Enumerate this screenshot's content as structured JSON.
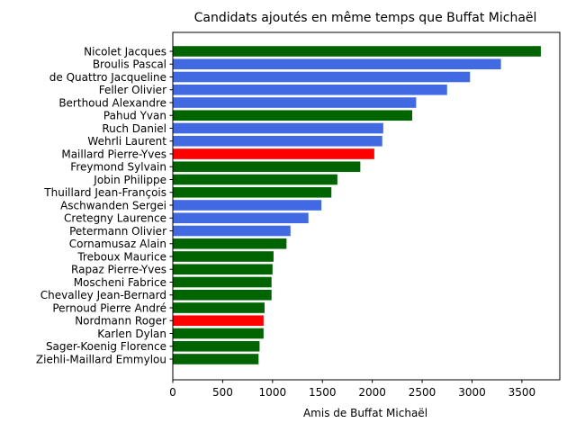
{
  "chart_data": {
    "type": "bar",
    "orientation": "horizontal",
    "title": "Candidats ajoutés en même temps que Buffat Michaël",
    "xlabel": "Amis de Buffat Michaël",
    "ylabel": "",
    "xlim": [
      0,
      3880
    ],
    "xticks": [
      0,
      500,
      1000,
      1500,
      2000,
      2500,
      3000,
      3500
    ],
    "grid": false,
    "colors": {
      "green": "#006400",
      "blue": "#4169e1",
      "red": "#ff0000"
    },
    "bars": [
      {
        "label": "Nicolet Jacques",
        "value": 3690,
        "color": "#006400"
      },
      {
        "label": "Broulis Pascal",
        "value": 3290,
        "color": "#4169e1"
      },
      {
        "label": "de Quattro Jacqueline",
        "value": 2980,
        "color": "#4169e1"
      },
      {
        "label": "Feller Olivier",
        "value": 2750,
        "color": "#4169e1"
      },
      {
        "label": "Berthoud Alexandre",
        "value": 2440,
        "color": "#4169e1"
      },
      {
        "label": "Pahud Yvan",
        "value": 2400,
        "color": "#006400"
      },
      {
        "label": "Ruch Daniel",
        "value": 2110,
        "color": "#4169e1"
      },
      {
        "label": "Wehrli Laurent",
        "value": 2100,
        "color": "#4169e1"
      },
      {
        "label": "Maillard Pierre-Yves",
        "value": 2020,
        "color": "#ff0000"
      },
      {
        "label": "Freymond Sylvain",
        "value": 1880,
        "color": "#006400"
      },
      {
        "label": "Jobin Philippe",
        "value": 1650,
        "color": "#006400"
      },
      {
        "label": "Thuillard Jean-François",
        "value": 1590,
        "color": "#006400"
      },
      {
        "label": "Aschwanden Sergei",
        "value": 1490,
        "color": "#4169e1"
      },
      {
        "label": "Cretegny Laurence",
        "value": 1360,
        "color": "#4169e1"
      },
      {
        "label": "Petermann Olivier",
        "value": 1180,
        "color": "#4169e1"
      },
      {
        "label": "Cornamusaz Alain",
        "value": 1140,
        "color": "#006400"
      },
      {
        "label": "Treboux Maurice",
        "value": 1010,
        "color": "#006400"
      },
      {
        "label": "Rapaz Pierre-Yves",
        "value": 1000,
        "color": "#006400"
      },
      {
        "label": "Moscheni Fabrice",
        "value": 990,
        "color": "#006400"
      },
      {
        "label": "Chevalley Jean-Bernard",
        "value": 990,
        "color": "#006400"
      },
      {
        "label": "Pernoud Pierre André",
        "value": 920,
        "color": "#006400"
      },
      {
        "label": "Nordmann Roger",
        "value": 910,
        "color": "#ff0000"
      },
      {
        "label": "Karlen Dylan",
        "value": 910,
        "color": "#006400"
      },
      {
        "label": "Sager-Koenig Florence",
        "value": 870,
        "color": "#006400"
      },
      {
        "label": "Ziehli-Maillard Emmylou",
        "value": 860,
        "color": "#006400"
      }
    ]
  }
}
